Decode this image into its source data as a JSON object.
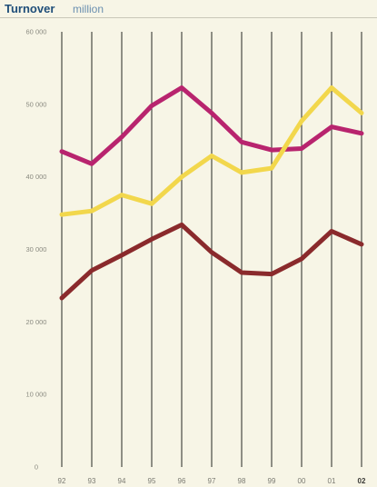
{
  "chart_data": {
    "type": "line",
    "title": "Turnover",
    "subtitle": "million",
    "xlabel": "",
    "ylabel": "",
    "x": [
      "92",
      "93",
      "94",
      "95",
      "96",
      "97",
      "98",
      "99",
      "00",
      "01",
      "02"
    ],
    "bold_x_labels": [
      "02"
    ],
    "ylim": [
      0,
      60000
    ],
    "yticks": [
      0,
      10000,
      20000,
      30000,
      40000,
      50000,
      60000
    ],
    "ytick_labels": [
      "0",
      "10 000",
      "20 000",
      "30 000",
      "40 000",
      "50 000",
      "60 000"
    ],
    "grid": "vertical",
    "legend": "none",
    "series": [
      {
        "color": "#b8246e",
        "values": [
          43500,
          41800,
          45500,
          49800,
          52300,
          48800,
          44800,
          43700,
          43900,
          46900,
          46000
        ]
      },
      {
        "color": "#f2d74c",
        "values": [
          34800,
          35300,
          37500,
          36300,
          40000,
          42900,
          40600,
          41200,
          47700,
          52300,
          48800
        ]
      },
      {
        "color": "#8a2a2c",
        "values": [
          23300,
          27100,
          29200,
          31400,
          33400,
          29600,
          26800,
          26600,
          28700,
          32500,
          30700
        ]
      }
    ]
  }
}
